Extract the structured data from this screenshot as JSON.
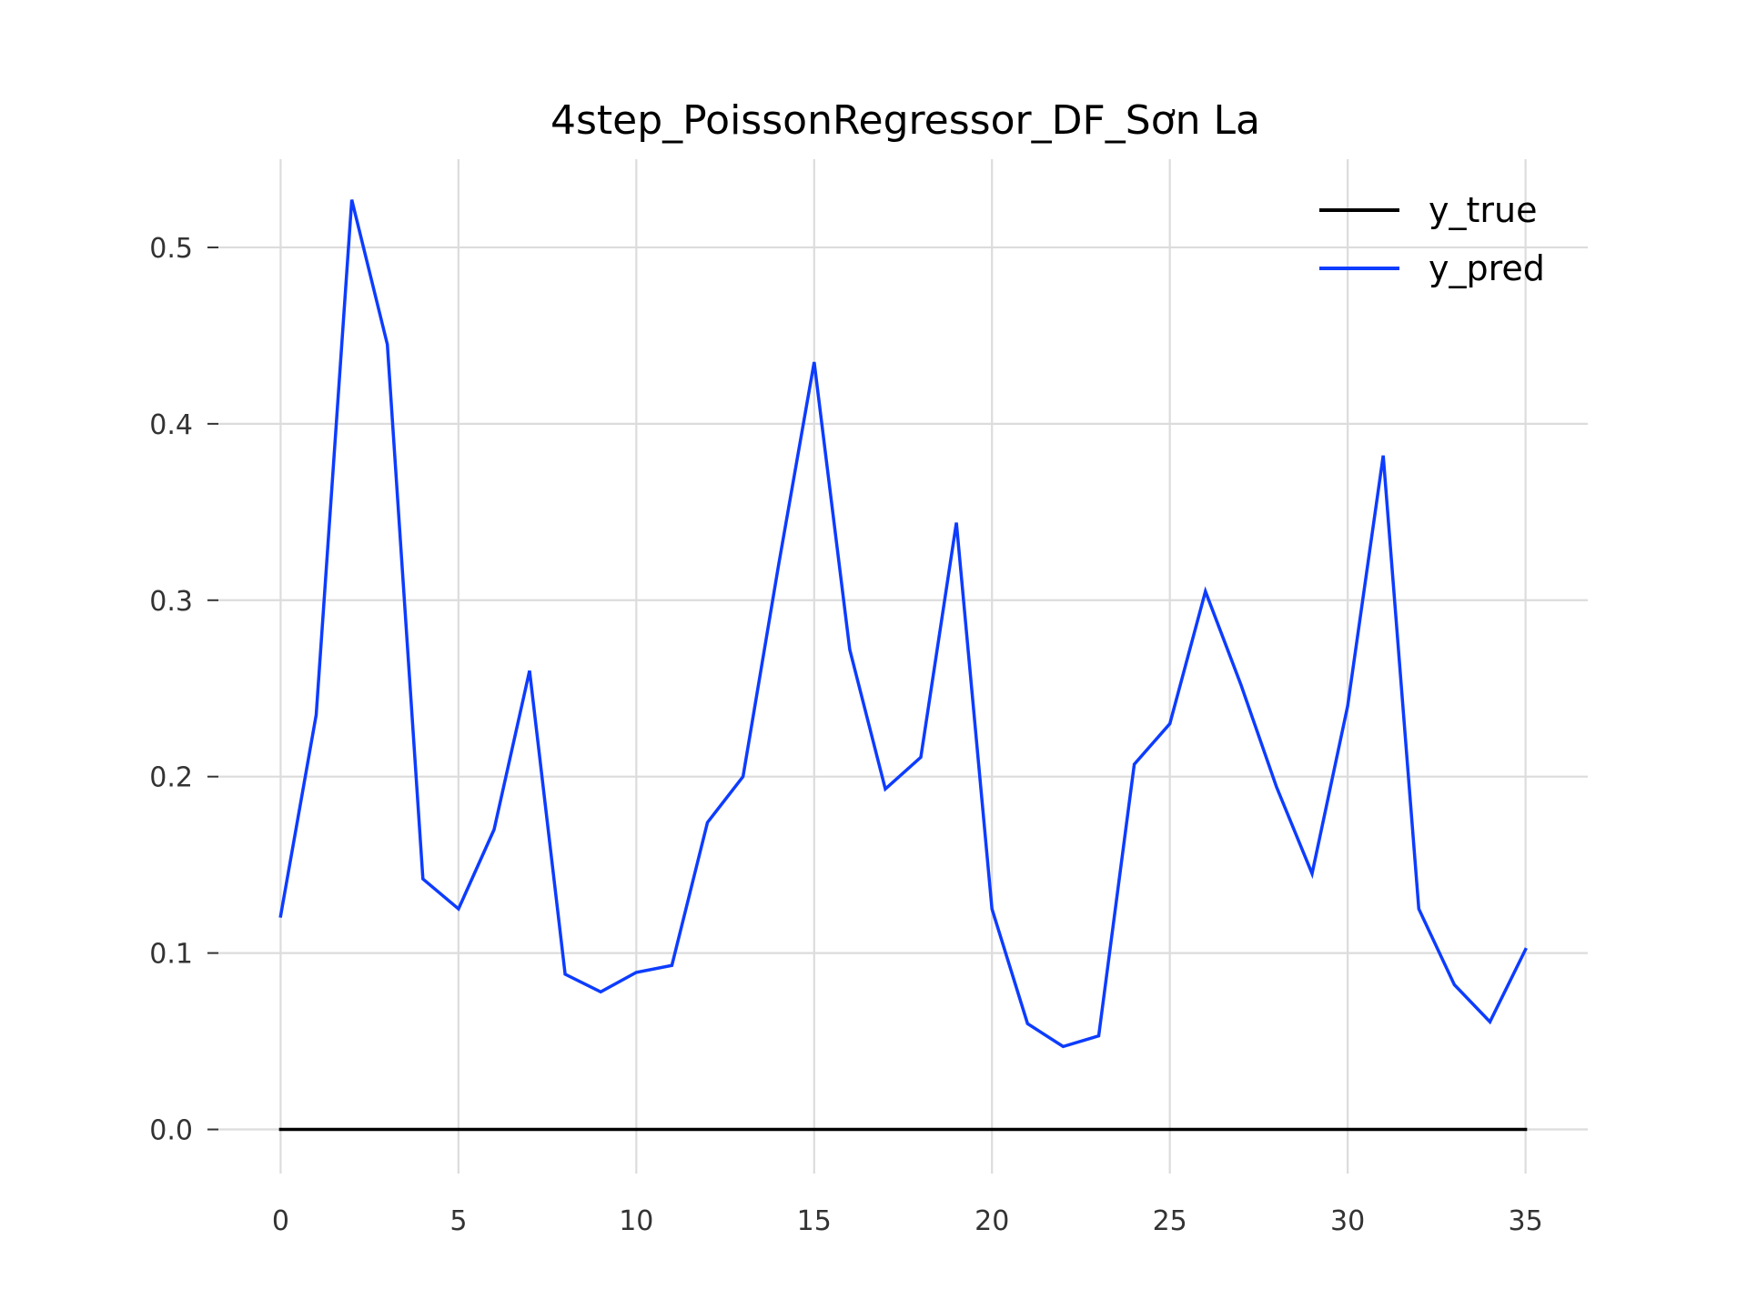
{
  "chart_data": {
    "type": "line",
    "title": "4step_PoissonRegressor_DF_Sơn La",
    "xlabel": "",
    "ylabel": "",
    "xlim": [
      -1.75,
      36.75
    ],
    "ylim": [
      -0.025,
      0.55
    ],
    "x_ticks": [
      0,
      5,
      10,
      15,
      20,
      25,
      30,
      35
    ],
    "y_ticks": [
      0.0,
      0.1,
      0.2,
      0.3,
      0.4,
      0.5
    ],
    "y_tick_labels": [
      "0.0",
      "0.1",
      "0.2",
      "0.3",
      "0.4",
      "0.5"
    ],
    "grid": true,
    "legend_position": "top-right",
    "series": [
      {
        "name": "y_true",
        "color": "#000000",
        "x": [
          0,
          1,
          2,
          3,
          4,
          5,
          6,
          7,
          8,
          9,
          10,
          11,
          12,
          13,
          14,
          15,
          16,
          17,
          18,
          19,
          20,
          21,
          22,
          23,
          24,
          25,
          26,
          27,
          28,
          29,
          30,
          31,
          32,
          33,
          34,
          35
        ],
        "values": [
          0,
          0,
          0,
          0,
          0,
          0,
          0,
          0,
          0,
          0,
          0,
          0,
          0,
          0,
          0,
          0,
          0,
          0,
          0,
          0,
          0,
          0,
          0,
          0,
          0,
          0,
          0,
          0,
          0,
          0,
          0,
          0,
          0,
          0,
          0,
          0
        ]
      },
      {
        "name": "y_pred",
        "color": "#0d3cff",
        "x": [
          0,
          1,
          2,
          3,
          4,
          5,
          6,
          7,
          8,
          9,
          10,
          11,
          12,
          13,
          14,
          15,
          16,
          17,
          18,
          19,
          20,
          21,
          22,
          23,
          24,
          25,
          26,
          27,
          28,
          29,
          30,
          31,
          32,
          33,
          34,
          35
        ],
        "values": [
          0.121,
          0.235,
          0.527,
          0.445,
          0.142,
          0.125,
          0.17,
          0.26,
          0.088,
          0.078,
          0.089,
          0.093,
          0.174,
          0.2,
          0.32,
          0.435,
          0.272,
          0.193,
          0.211,
          0.344,
          0.125,
          0.06,
          0.047,
          0.053,
          0.207,
          0.23,
          0.305,
          0.252,
          0.194,
          0.145,
          0.24,
          0.382,
          0.125,
          0.082,
          0.061,
          0.102
        ]
      }
    ]
  }
}
